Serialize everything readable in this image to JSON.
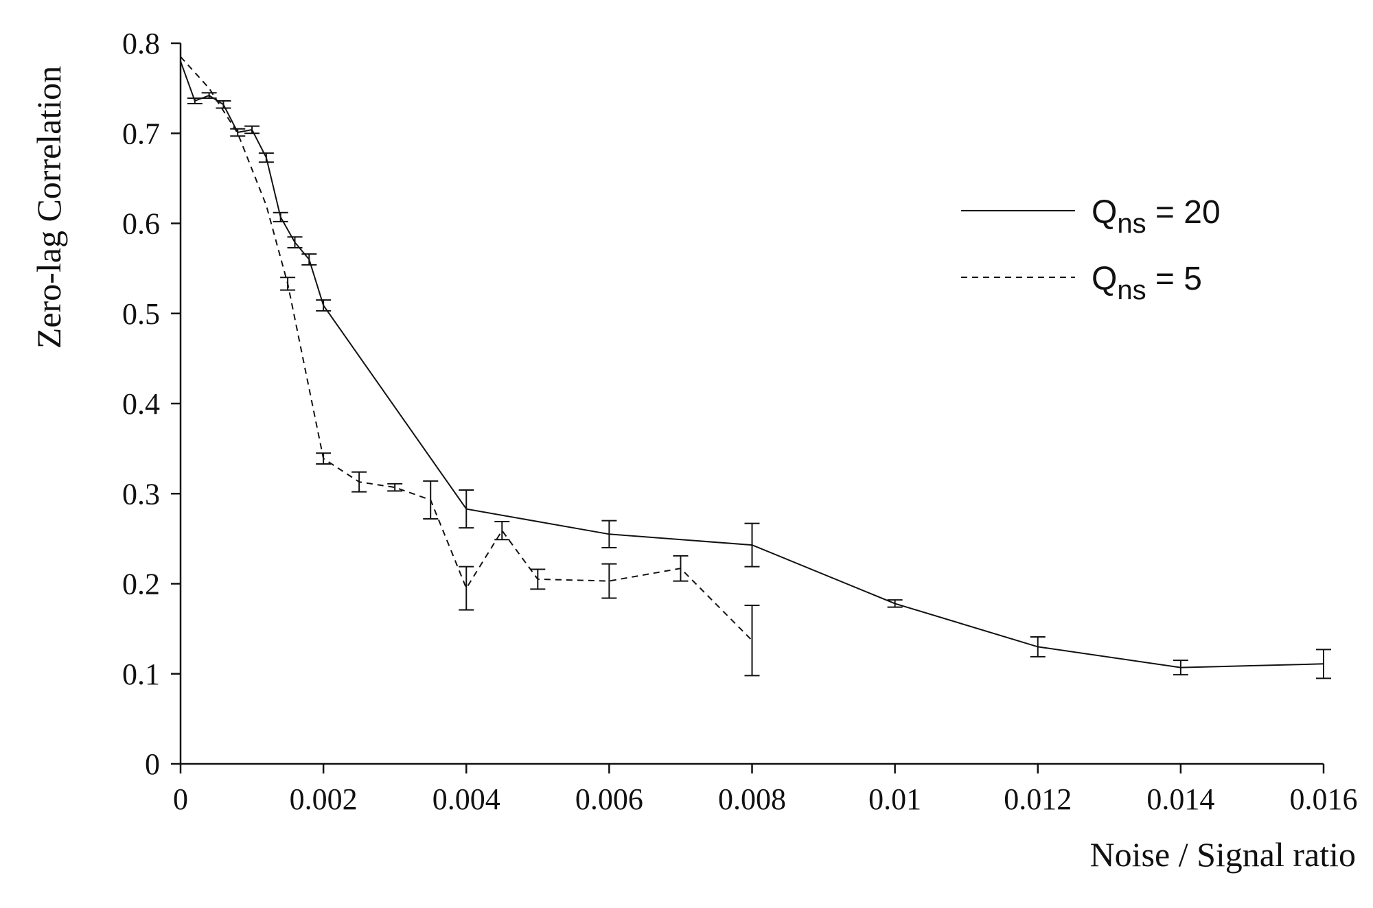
{
  "chart_data": {
    "type": "line",
    "title": "",
    "xlabel": "Noise / Signal ratio",
    "ylabel": "Zero-lag Correlation",
    "xlim": [
      0,
      0.016
    ],
    "ylim": [
      0,
      0.8
    ],
    "x_ticks": [
      "0",
      "0.002",
      "0.004",
      "0.006",
      "0.008",
      "0.01",
      "0.012",
      "0.014",
      "0.016"
    ],
    "x_tick_values": [
      0,
      0.002,
      0.004,
      0.006,
      0.008,
      0.01,
      0.012,
      0.014,
      0.016
    ],
    "y_ticks": [
      "0",
      "0.1",
      "0.2",
      "0.3",
      "0.4",
      "0.5",
      "0.6",
      "0.7",
      "0.8"
    ],
    "y_tick_values": [
      0,
      0.1,
      0.2,
      0.3,
      0.4,
      0.5,
      0.6,
      0.7,
      0.8
    ],
    "grid": false,
    "legend_position": "top-right",
    "series": [
      {
        "label_main": "Q",
        "label_sub": "ns",
        "label_rest": " = 20",
        "style": "solid",
        "x": [
          0,
          0.0002,
          0.0004,
          0.0006,
          0.0008,
          0.001,
          0.0012,
          0.0014,
          0.0016,
          0.0018,
          0.002,
          0.004,
          0.006,
          0.008,
          0.01,
          0.012,
          0.014,
          0.016
        ],
        "y": [
          0.78,
          0.736,
          0.742,
          0.732,
          0.701,
          0.704,
          0.673,
          0.607,
          0.579,
          0.56,
          0.509,
          0.283,
          0.255,
          0.243,
          0.178,
          0.13,
          0.107,
          0.111
        ],
        "err": [
          0,
          0.003,
          0.003,
          0.004,
          0.004,
          0.004,
          0.005,
          0.005,
          0.006,
          0.006,
          0.006,
          0.021,
          0.015,
          0.024,
          0.004,
          0.011,
          0.008,
          0.016
        ]
      },
      {
        "label_main": "Q",
        "label_sub": "ns",
        "label_rest": " = 5",
        "style": "dashed",
        "x": [
          0,
          0.0004,
          0.0008,
          0.0012,
          0.0015,
          0.002,
          0.0025,
          0.003,
          0.0035,
          0.004,
          0.0045,
          0.005,
          0.006,
          0.007,
          0.008
        ],
        "y": [
          0.785,
          0.75,
          0.7,
          0.62,
          0.533,
          0.339,
          0.313,
          0.307,
          0.293,
          0.195,
          0.259,
          0.205,
          0.203,
          0.217,
          0.137
        ],
        "err": [
          0,
          0,
          0,
          0,
          0.007,
          0.006,
          0.011,
          0.004,
          0.021,
          0.024,
          0.01,
          0.011,
          0.019,
          0.014,
          0.039
        ]
      }
    ]
  }
}
